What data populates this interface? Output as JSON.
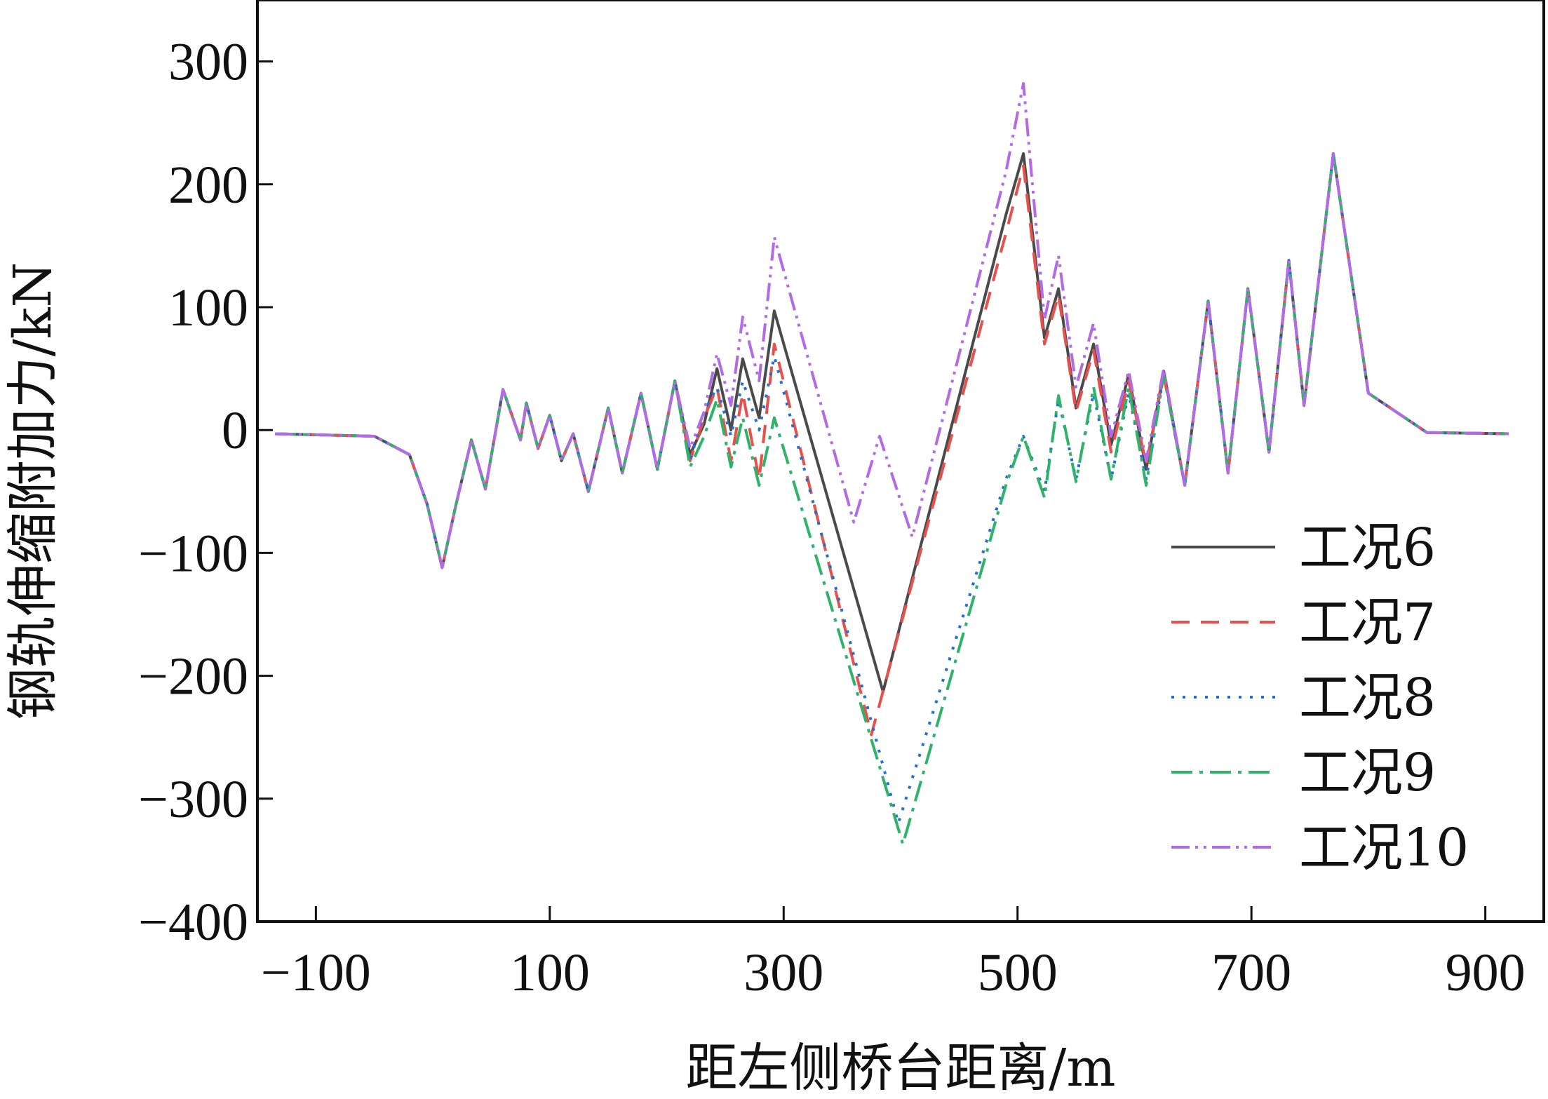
{
  "chart_data": {
    "type": "line",
    "xlabel": "距左侧桥台距离/m",
    "ylabel": "钢轨伸缩附加力/kN",
    "xlim": [
      -150,
      950
    ],
    "ylim": [
      -400,
      350
    ],
    "xticks": [
      -100,
      100,
      300,
      500,
      700,
      900
    ],
    "yticks": [
      300,
      200,
      100,
      0,
      -100,
      -200,
      -300,
      -400
    ],
    "xtick_labels": [
      "−100",
      "100",
      "300",
      "500",
      "700",
      "900"
    ],
    "ytick_labels": [
      "300",
      "200",
      "100",
      "0",
      "−100",
      "−200",
      "−300",
      "−400"
    ],
    "grid": false,
    "legend_position": "lower-right",
    "series": [
      {
        "name": "工况6",
        "color": "#4a4a4a",
        "dash": "solid",
        "x": [
          -135,
          -50,
          -20,
          -5,
          8,
          20,
          33,
          45,
          60,
          75,
          80,
          90,
          100,
          110,
          120,
          133,
          150,
          162,
          178,
          192,
          207,
          220,
          232,
          243,
          255,
          265,
          279,
          292,
          385,
          490,
          505,
          523,
          535,
          550,
          565,
          580,
          595,
          610,
          625,
          643,
          663,
          680,
          697,
          715,
          732,
          745,
          770,
          800,
          850,
          920
        ],
        "y": [
          -3,
          -5,
          -20,
          -60,
          -112,
          -60,
          -8,
          -48,
          33,
          -8,
          22,
          -15,
          12,
          -25,
          -3,
          -50,
          18,
          -35,
          30,
          -32,
          40,
          -20,
          5,
          50,
          0,
          58,
          10,
          97,
          -213,
          175,
          225,
          75,
          115,
          18,
          70,
          -12,
          45,
          -32,
          48,
          -45,
          105,
          -35,
          115,
          -18,
          138,
          20,
          225,
          30,
          -2,
          -3
        ]
      },
      {
        "name": "工况7",
        "color": "#e8504c",
        "dash": "26,16",
        "x": [
          -135,
          -50,
          -20,
          -5,
          8,
          20,
          33,
          45,
          60,
          75,
          80,
          90,
          100,
          110,
          120,
          133,
          150,
          162,
          178,
          192,
          207,
          220,
          232,
          243,
          255,
          265,
          279,
          292,
          375,
          490,
          505,
          523,
          535,
          550,
          565,
          580,
          595,
          610,
          625,
          643,
          663,
          680,
          697,
          715,
          732,
          745,
          770,
          800,
          850,
          920
        ],
        "y": [
          -3,
          -5,
          -20,
          -60,
          -112,
          -60,
          -8,
          -48,
          33,
          -8,
          22,
          -15,
          12,
          -25,
          -3,
          -50,
          18,
          -35,
          30,
          -32,
          40,
          -25,
          10,
          35,
          -25,
          30,
          -40,
          70,
          -248,
          160,
          215,
          70,
          110,
          15,
          65,
          -18,
          40,
          -28,
          45,
          -45,
          105,
          -35,
          115,
          -18,
          138,
          20,
          225,
          30,
          -2,
          -3
        ]
      },
      {
        "name": "工况8",
        "color": "#1f6fd6",
        "dash": "4,12",
        "x": [
          -135,
          -50,
          -20,
          -5,
          8,
          20,
          33,
          45,
          60,
          75,
          80,
          90,
          100,
          110,
          120,
          133,
          150,
          162,
          178,
          192,
          207,
          220,
          232,
          243,
          255,
          265,
          279,
          292,
          398,
          490,
          505,
          523,
          535,
          550,
          565,
          580,
          595,
          610,
          625,
          643,
          663,
          680,
          697,
          715,
          732,
          745,
          770,
          800,
          850,
          920
        ],
        "y": [
          -3,
          -5,
          -20,
          -60,
          -112,
          -60,
          -8,
          -48,
          33,
          -8,
          22,
          -15,
          12,
          -25,
          -3,
          -50,
          18,
          -35,
          30,
          -32,
          40,
          -25,
          15,
          35,
          -5,
          40,
          0,
          60,
          -320,
          -40,
          -5,
          -50,
          25,
          -40,
          30,
          -40,
          30,
          -40,
          45,
          -45,
          105,
          -35,
          115,
          -18,
          138,
          20,
          225,
          30,
          -2,
          -3
        ]
      },
      {
        "name": "工况9",
        "color": "#2fb36a",
        "dash": "30,10,5,10",
        "x": [
          -135,
          -50,
          -20,
          -5,
          8,
          20,
          33,
          45,
          60,
          75,
          80,
          90,
          100,
          110,
          120,
          133,
          150,
          162,
          178,
          192,
          207,
          220,
          232,
          243,
          255,
          265,
          279,
          292,
          402,
          490,
          505,
          523,
          535,
          550,
          565,
          580,
          595,
          610,
          625,
          643,
          663,
          680,
          697,
          715,
          732,
          745,
          770,
          800,
          850,
          920
        ],
        "y": [
          -3,
          -5,
          -20,
          -60,
          -112,
          -60,
          -8,
          -48,
          33,
          -8,
          22,
          -15,
          12,
          -25,
          -3,
          -50,
          18,
          -35,
          30,
          -32,
          40,
          -30,
          -5,
          25,
          -30,
          10,
          -45,
          10,
          -337,
          -45,
          -5,
          -55,
          28,
          -42,
          35,
          -40,
          35,
          -45,
          45,
          -45,
          105,
          -35,
          115,
          -18,
          138,
          20,
          225,
          30,
          -2,
          -3
        ]
      },
      {
        "name": "工况10",
        "color": "#b36ae6",
        "dash": "26,8,4,8,4,8",
        "x": [
          -135,
          -50,
          -20,
          -5,
          8,
          20,
          33,
          45,
          60,
          75,
          80,
          90,
          100,
          110,
          120,
          133,
          150,
          162,
          178,
          192,
          207,
          220,
          232,
          243,
          255,
          265,
          279,
          292,
          360,
          382,
          410,
          490,
          505,
          523,
          535,
          550,
          565,
          580,
          595,
          610,
          625,
          643,
          663,
          680,
          697,
          715,
          732,
          745,
          770,
          800,
          850,
          920
        ],
        "y": [
          -3,
          -5,
          -20,
          -60,
          -112,
          -60,
          -8,
          -48,
          33,
          -8,
          22,
          -15,
          12,
          -25,
          -3,
          -50,
          18,
          -35,
          30,
          -32,
          40,
          -15,
          15,
          62,
          20,
          92,
          40,
          157,
          -75,
          -5,
          -87,
          210,
          282,
          90,
          142,
          35,
          87,
          -5,
          48,
          -25,
          50,
          -45,
          105,
          -35,
          115,
          -18,
          138,
          20,
          225,
          30,
          -2,
          -3
        ]
      }
    ]
  }
}
